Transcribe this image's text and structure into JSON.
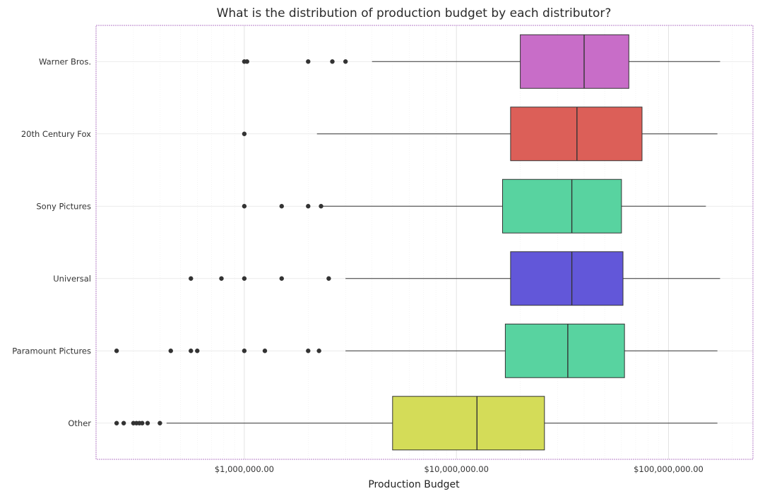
{
  "chart_data": {
    "type": "box",
    "title": "What is the distribution of production budget by each distributor?",
    "xlabel": "Production Budget",
    "ylabel": "",
    "x_scale": "log",
    "xlim": [
      200000,
      250000000
    ],
    "x_ticks": [
      {
        "value": 1000000,
        "label": "$1,000,000.00"
      },
      {
        "value": 10000000,
        "label": "$10,000,000.00"
      },
      {
        "value": 100000000,
        "label": "$100,000,000.00"
      }
    ],
    "grid": true,
    "legend": "none",
    "categories": [
      "Warner Bros.",
      "20th Century Fox",
      "Sony Pictures",
      "Universal",
      "Paramount Pictures",
      "Other"
    ],
    "boxes": [
      {
        "category": "Warner Bros.",
        "color": "#c86dc8",
        "whisker_low": 4000000,
        "q1": 20000000,
        "median": 40000000,
        "q3": 65000000,
        "whisker_high": 175000000,
        "outliers": [
          1000000,
          1030000,
          2000000,
          2600000,
          3000000
        ]
      },
      {
        "category": "20th Century Fox",
        "color": "#dc5f58",
        "whisker_low": 2200000,
        "q1": 18000000,
        "median": 37000000,
        "q3": 75000000,
        "whisker_high": 170000000,
        "outliers": [
          1000000
        ]
      },
      {
        "category": "Sony Pictures",
        "color": "#58d3a0",
        "whisker_low": 2300000,
        "q1": 16500000,
        "median": 35000000,
        "q3": 60000000,
        "whisker_high": 150000000,
        "outliers": [
          1000000,
          1500000,
          2000000,
          2300000
        ]
      },
      {
        "category": "Universal",
        "color": "#6257d9",
        "whisker_low": 3000000,
        "q1": 18000000,
        "median": 35000000,
        "q3": 61000000,
        "whisker_high": 175000000,
        "outliers": [
          560000,
          780000,
          1000000,
          1500000,
          2500000
        ]
      },
      {
        "category": "Paramount Pictures",
        "color": "#58d3a0",
        "whisker_low": 3000000,
        "q1": 17000000,
        "median": 33500000,
        "q3": 62000000,
        "whisker_high": 170000000,
        "outliers": [
          250000,
          450000,
          560000,
          600000,
          1000000,
          1250000,
          2000000,
          2250000
        ]
      },
      {
        "category": "Other",
        "color": "#d4dc58",
        "whisker_low": 430000,
        "q1": 5000000,
        "median": 12500000,
        "q3": 26000000,
        "whisker_high": 170000000,
        "outliers": [
          250000,
          270000,
          300000,
          310000,
          320000,
          330000,
          350000,
          400000
        ]
      }
    ]
  }
}
